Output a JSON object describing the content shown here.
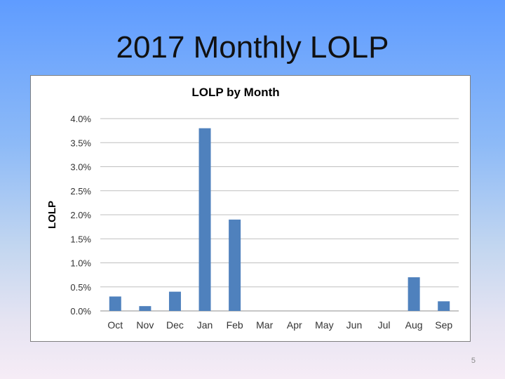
{
  "slide": {
    "title": "2017 Monthly LOLP",
    "page_number": "5"
  },
  "chart_data": {
    "type": "bar",
    "title": "LOLP by Month",
    "xlabel": "",
    "ylabel": "LOLP",
    "categories": [
      "Oct",
      "Nov",
      "Dec",
      "Jan",
      "Feb",
      "Mar",
      "Apr",
      "May",
      "Jun",
      "Jul",
      "Aug",
      "Sep"
    ],
    "values": [
      0.3,
      0.1,
      0.4,
      3.8,
      1.9,
      0,
      0,
      0,
      0,
      0,
      0.7,
      0.2
    ],
    "ylim": [
      0,
      4
    ],
    "y_ticks": [
      "0.0%",
      "0.5%",
      "1.0%",
      "1.5%",
      "2.0%",
      "2.5%",
      "3.0%",
      "3.5%",
      "4.0%"
    ],
    "grid": true,
    "legend": "none",
    "bar_color": "#4f81bd",
    "grid_color": "#bfbfbf"
  }
}
